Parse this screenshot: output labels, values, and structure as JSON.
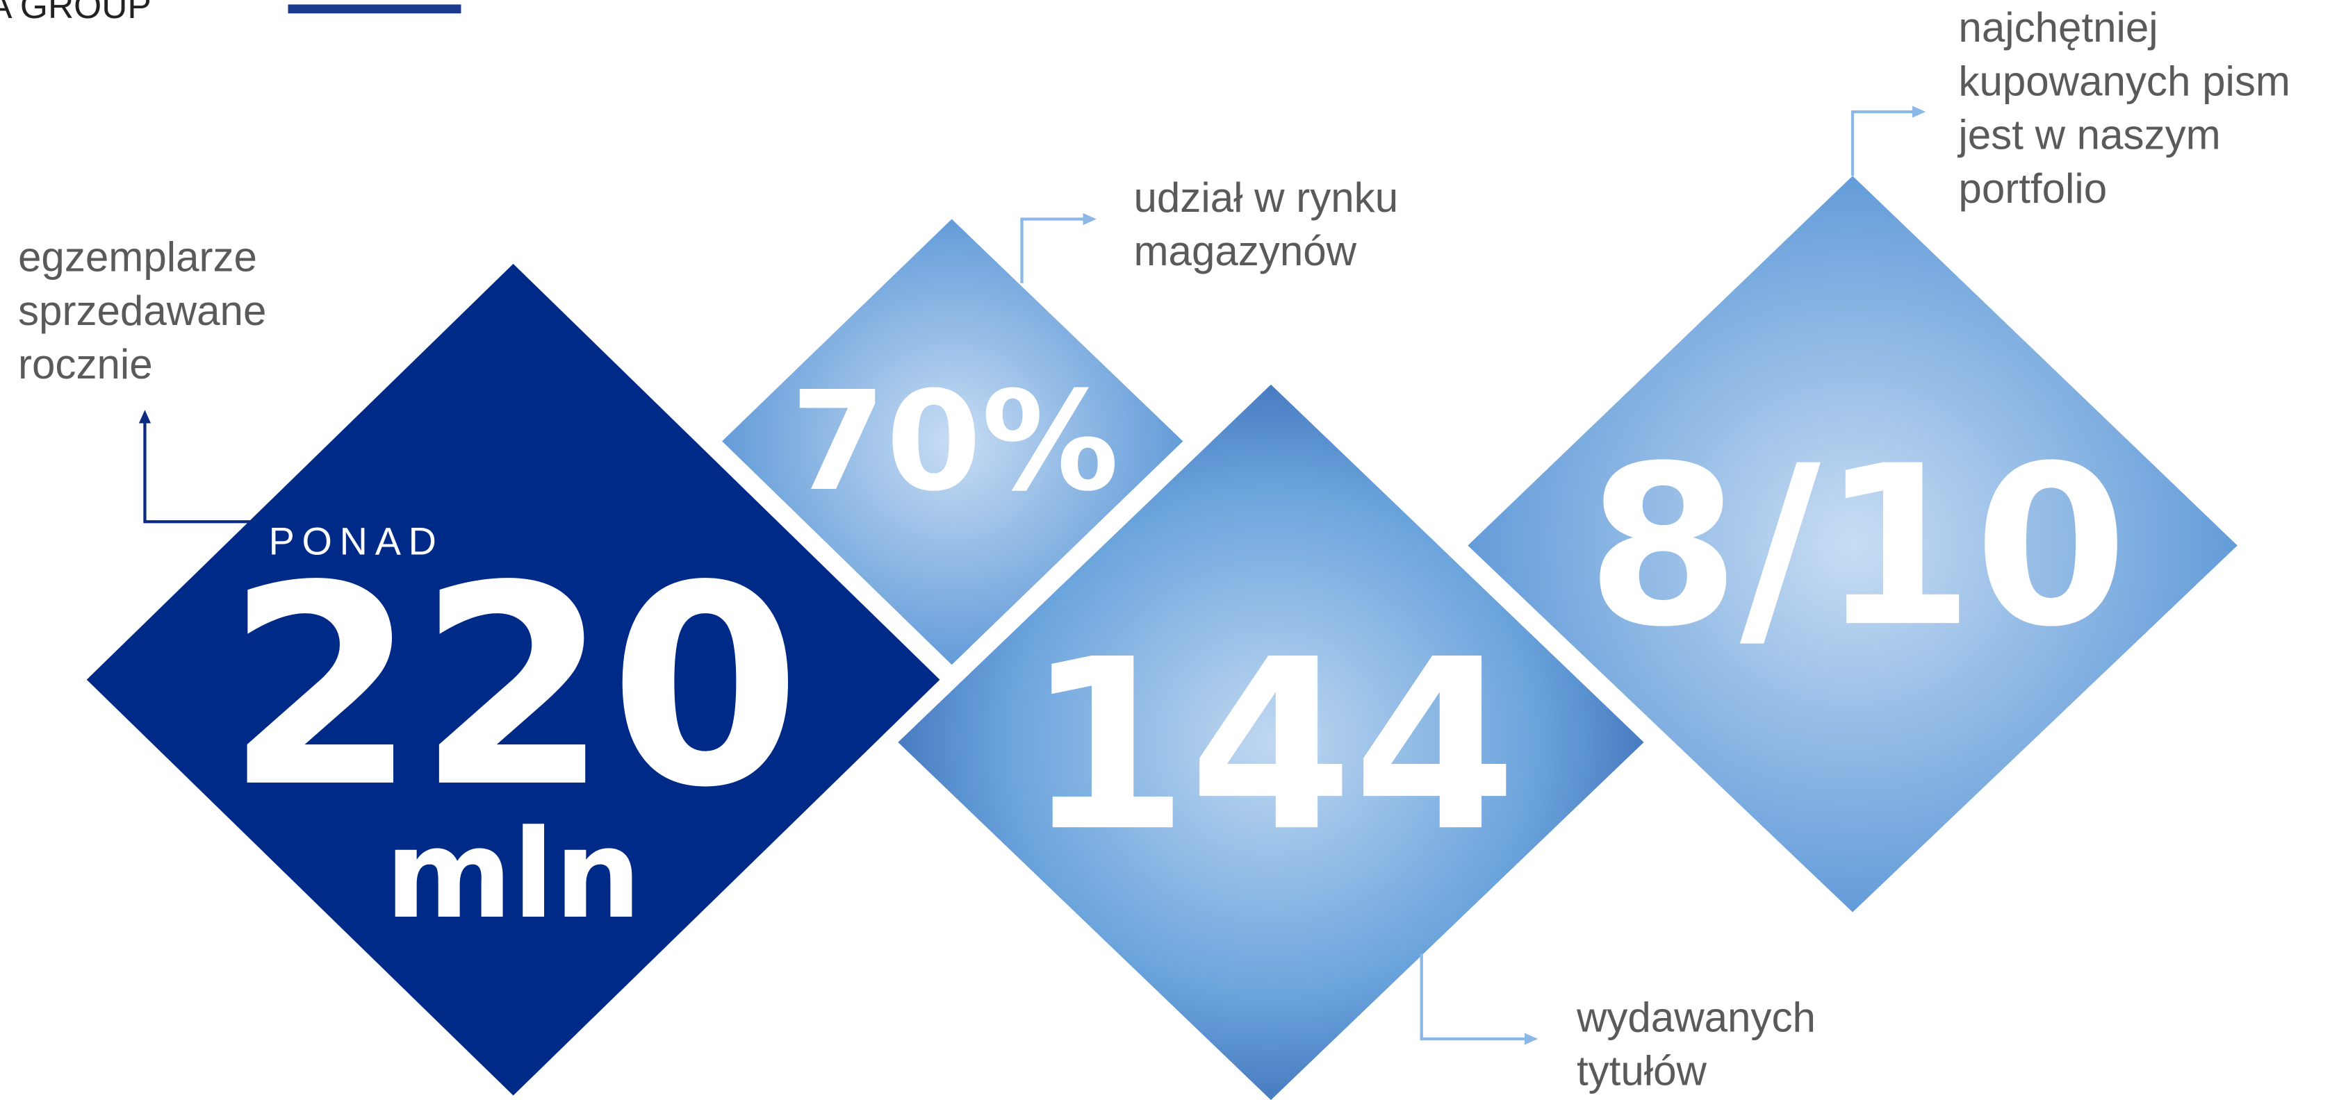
{
  "header": {
    "logo_text": "A GROUP"
  },
  "stats": [
    {
      "prefix": "PONAD",
      "value": "220",
      "unit": "mln",
      "caption": [
        "egzemplarze",
        "sprzedawane",
        "rocznie"
      ]
    },
    {
      "value": "70%",
      "caption": [
        "udział w rynku",
        "magazynów"
      ]
    },
    {
      "value": "144",
      "caption": [
        "wydawanych",
        "tytułów"
      ]
    },
    {
      "value": "8/10",
      "caption": [
        "najchętniej",
        "kupowanych pism",
        "jest w naszym",
        "portfolio"
      ]
    }
  ]
}
